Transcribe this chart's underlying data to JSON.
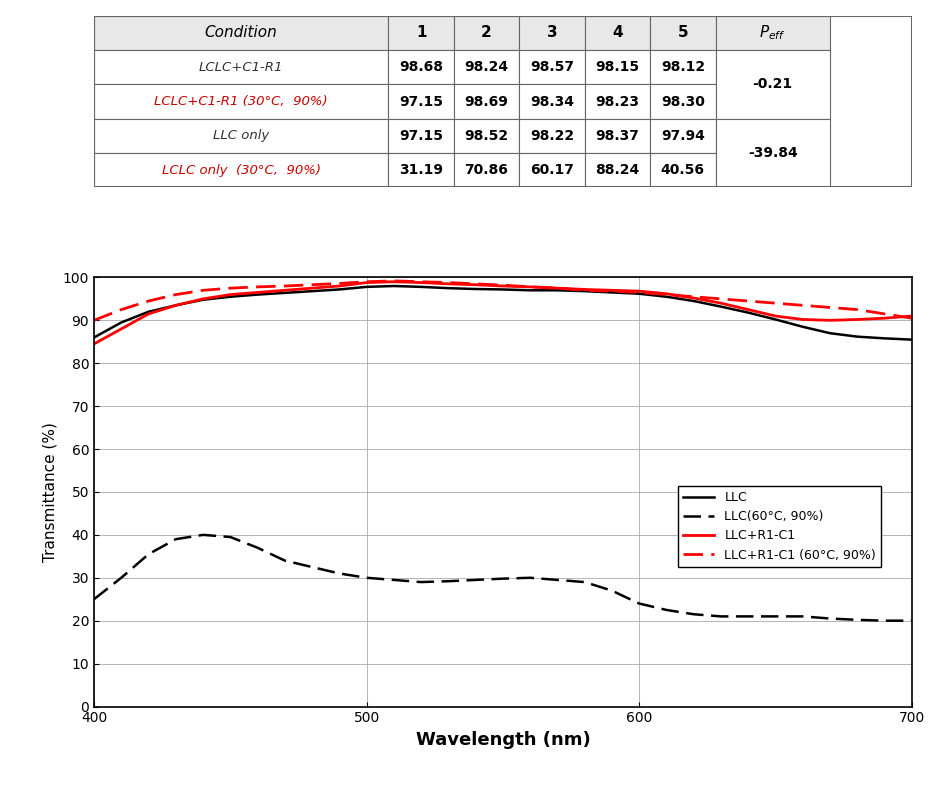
{
  "table": {
    "headers": [
      "Condition",
      "1",
      "2",
      "3",
      "4",
      "5",
      "P_eff"
    ],
    "rows": [
      [
        "LCLC+C1-R1",
        "98.68",
        "98.24",
        "98.57",
        "98.15",
        "98.12"
      ],
      [
        "LCLC+C1-R1 (30°C,  90%)",
        "97.15",
        "98.69",
        "98.34",
        "98.23",
        "98.30"
      ],
      [
        "LLC only",
        "97.15",
        "98.52",
        "98.22",
        "98.37",
        "97.94"
      ],
      [
        "LCLC only  (30°C,  90%)",
        "31.19",
        "70.86",
        "60.17",
        "88.24",
        "40.56"
      ]
    ],
    "peff_spans": [
      {
        "rows": [
          0,
          1
        ],
        "value": "-0.21"
      },
      {
        "rows": [
          2,
          3
        ],
        "value": "-39.84"
      }
    ],
    "row_colors": [
      "#333333",
      "#cc0000",
      "#333333",
      "#cc0000"
    ]
  },
  "plot": {
    "xlabel": "Wavelength (nm)",
    "ylabel": "Transmittance (%)",
    "xlim": [
      400,
      700
    ],
    "ylim": [
      0,
      100
    ],
    "xticks": [
      400,
      500,
      600,
      700
    ],
    "yticks": [
      0,
      10,
      20,
      30,
      40,
      50,
      60,
      70,
      80,
      90,
      100
    ],
    "legend_labels": [
      "LLC",
      "LLC(60°C, 90%)",
      "LLC+R1-C1",
      "LLC+R1-C1 (60°C, 90%)"
    ],
    "curves": {
      "LLC": {
        "color": "black",
        "linestyle": "solid",
        "linewidth": 1.8,
        "x": [
          400,
          410,
          420,
          430,
          440,
          450,
          460,
          470,
          480,
          490,
          500,
          510,
          520,
          530,
          540,
          550,
          560,
          570,
          580,
          590,
          600,
          610,
          620,
          630,
          640,
          650,
          660,
          670,
          680,
          690,
          700
        ],
        "y": [
          86.0,
          89.5,
          92.0,
          93.5,
          94.8,
          95.5,
          96.0,
          96.4,
          96.8,
          97.2,
          97.8,
          98.0,
          97.8,
          97.5,
          97.3,
          97.2,
          97.0,
          97.0,
          96.8,
          96.5,
          96.2,
          95.5,
          94.5,
          93.2,
          91.8,
          90.2,
          88.5,
          87.0,
          86.2,
          85.8,
          85.5
        ]
      },
      "LLC_60_90": {
        "color": "black",
        "linestyle": "dashed",
        "linewidth": 1.8,
        "x": [
          400,
          410,
          420,
          430,
          440,
          450,
          460,
          470,
          480,
          490,
          500,
          510,
          520,
          530,
          540,
          550,
          560,
          570,
          580,
          590,
          600,
          610,
          620,
          630,
          640,
          650,
          660,
          670,
          680,
          690,
          700
        ],
        "y": [
          25.0,
          30.0,
          35.5,
          39.0,
          40.0,
          39.5,
          37.0,
          34.0,
          32.5,
          31.0,
          30.0,
          29.5,
          29.0,
          29.2,
          29.5,
          29.8,
          30.0,
          29.5,
          29.0,
          27.0,
          24.0,
          22.5,
          21.5,
          21.0,
          21.0,
          21.0,
          21.0,
          20.5,
          20.2,
          20.0,
          20.0
        ]
      },
      "LLC_R1_C1": {
        "color": "red",
        "linestyle": "solid",
        "linewidth": 2.0,
        "x": [
          400,
          410,
          420,
          430,
          440,
          450,
          460,
          470,
          480,
          490,
          500,
          510,
          520,
          530,
          540,
          550,
          560,
          570,
          580,
          590,
          600,
          610,
          620,
          630,
          640,
          650,
          660,
          670,
          680,
          690,
          700
        ],
        "y": [
          84.5,
          88.0,
          91.5,
          93.5,
          95.0,
          96.0,
          96.5,
          97.0,
          97.5,
          98.0,
          98.8,
          99.0,
          98.8,
          98.5,
          98.3,
          98.0,
          97.8,
          97.5,
          97.2,
          97.0,
          96.8,
          96.2,
          95.2,
          94.0,
          92.5,
          91.0,
          90.2,
          90.0,
          90.2,
          90.5,
          91.0
        ]
      },
      "LLC_R1_C1_60_90": {
        "color": "red",
        "linestyle": "dashed",
        "linewidth": 2.0,
        "x": [
          400,
          410,
          420,
          430,
          440,
          450,
          460,
          470,
          480,
          490,
          500,
          510,
          520,
          530,
          540,
          550,
          560,
          570,
          580,
          590,
          600,
          610,
          620,
          630,
          640,
          650,
          660,
          670,
          680,
          690,
          700
        ],
        "y": [
          90.0,
          92.5,
          94.5,
          96.0,
          97.0,
          97.5,
          97.8,
          98.0,
          98.3,
          98.6,
          99.0,
          99.2,
          99.0,
          98.8,
          98.5,
          98.2,
          97.8,
          97.5,
          97.0,
          96.8,
          96.5,
          96.0,
          95.5,
          95.0,
          94.5,
          94.0,
          93.5,
          93.0,
          92.5,
          91.5,
          90.5
        ]
      }
    }
  }
}
